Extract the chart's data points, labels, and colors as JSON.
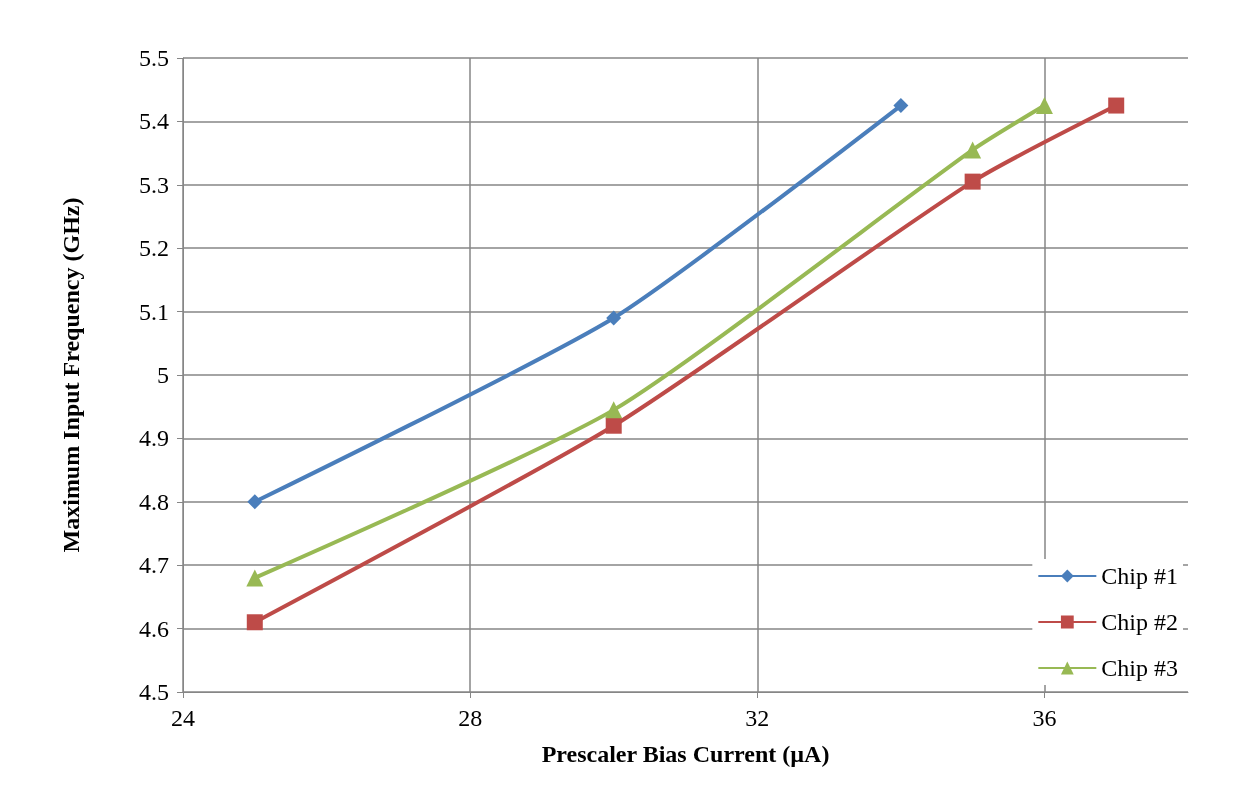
{
  "chart_data": {
    "type": "line",
    "xlabel": "Prescaler Bias Current (µA)",
    "ylabel": "Maximum Input Frequency (GHz)",
    "xlim": [
      24,
      38
    ],
    "xticks": [
      24,
      28,
      32,
      36
    ],
    "ylim": [
      4.5,
      5.5
    ],
    "yticks": [
      4.5,
      4.6,
      4.7,
      4.8,
      4.9,
      5,
      5.1,
      5.2,
      5.3,
      5.4,
      5.5
    ],
    "grid": true,
    "legend": "bottom right",
    "series": [
      {
        "name": "Chip #1",
        "color": "#4a7ebb",
        "marker": "diamond",
        "x": [
          25,
          30,
          34
        ],
        "values": [
          4.8,
          5.09,
          5.425
        ]
      },
      {
        "name": "Chip #2",
        "color": "#be4b48",
        "marker": "square",
        "x": [
          25,
          30,
          35,
          37
        ],
        "values": [
          4.61,
          4.92,
          5.305,
          5.425
        ]
      },
      {
        "name": "Chip #3",
        "color": "#98b954",
        "marker": "triangle",
        "x": [
          25,
          30,
          35,
          36
        ],
        "values": [
          4.68,
          4.945,
          5.355,
          5.425
        ]
      }
    ]
  }
}
